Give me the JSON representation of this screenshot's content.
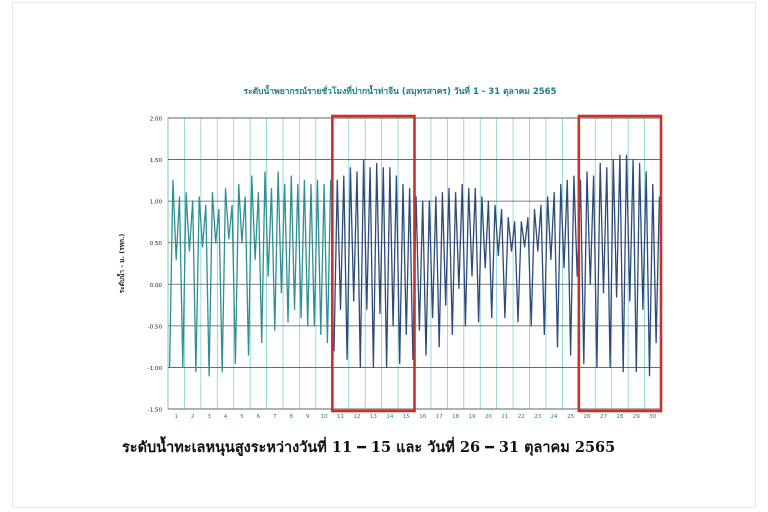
{
  "chart_data": {
    "type": "line",
    "title": "ระดับน้ำพยากรณ์รายชั่วโมงที่ปากน้ำท่าจีน (สมุทรสาคร) วันที่ 1 - 31 ตุลาคม 2565",
    "ylabel": "ระดับน้ำ - ม. (รทก.)",
    "xlabel": "",
    "ylim": [
      -1.5,
      2.0
    ],
    "xlim": [
      0.5,
      30.5
    ],
    "y_ticks": [
      "2.00",
      "1.50",
      "1.00",
      "0.50",
      "0.00",
      "-0.50",
      "-1.00",
      "-1.50"
    ],
    "x_ticks": [
      "1",
      "2",
      "3",
      "4",
      "5",
      "6",
      "7",
      "8",
      "9",
      "10",
      "11",
      "12",
      "13",
      "14",
      "15",
      "16",
      "17",
      "18",
      "19",
      "20",
      "21",
      "22",
      "23",
      "24",
      "25",
      "26",
      "27",
      "28",
      "29",
      "30"
    ],
    "grid": true,
    "highlight_ranges": [
      [
        10.5,
        15.5
      ],
      [
        25.5,
        30.5
      ]
    ],
    "series": [
      {
        "color": "#2f8f94",
        "x": [
          0.6,
          0.8,
          1.0,
          1.2,
          1.4,
          1.6,
          1.8,
          2.0,
          2.2,
          2.4,
          2.6,
          2.8,
          3.0,
          3.2,
          3.4,
          3.6,
          3.8,
          4.0,
          4.2,
          4.4,
          4.6,
          4.8,
          5.0,
          5.2,
          5.4,
          5.6,
          5.8,
          6.0,
          6.2,
          6.4,
          6.6,
          6.8,
          7.0,
          7.2,
          7.4,
          7.6,
          7.8,
          8.0,
          8.2,
          8.4,
          8.6,
          8.8,
          9.0,
          9.2,
          9.4,
          9.6,
          9.8,
          10.0,
          10.2,
          10.4
        ],
        "y": [
          -1.0,
          1.25,
          0.3,
          1.05,
          -1.0,
          1.1,
          0.4,
          1.0,
          -1.05,
          1.05,
          0.45,
          0.95,
          -1.1,
          1.1,
          0.5,
          0.9,
          -1.05,
          1.15,
          0.55,
          0.95,
          -0.95,
          1.2,
          0.5,
          1.05,
          -0.85,
          1.3,
          0.3,
          1.1,
          -0.7,
          1.35,
          0.1,
          1.15,
          -0.55,
          1.35,
          -0.1,
          1.2,
          -0.45,
          1.3,
          -0.3,
          1.2,
          -0.4,
          1.25,
          -0.5,
          1.2,
          -0.5,
          1.25,
          -0.6,
          1.2,
          -0.7,
          1.25
        ]
      },
      {
        "color": "#2d4a7a",
        "x": [
          10.6,
          10.8,
          11.0,
          11.2,
          11.4,
          11.6,
          11.8,
          12.0,
          12.2,
          12.4,
          12.6,
          12.8,
          13.0,
          13.2,
          13.4,
          13.6,
          13.8,
          14.0,
          14.2,
          14.4,
          14.6,
          14.8,
          15.0,
          15.2,
          15.4,
          15.6,
          15.8,
          16.0,
          16.2,
          16.4,
          16.6,
          16.8,
          17.0,
          17.2,
          17.4,
          17.6,
          17.8,
          18.0,
          18.2,
          18.4,
          18.6,
          18.8,
          19.0,
          19.2,
          19.4,
          19.6,
          19.8,
          20.0,
          20.2,
          20.4,
          20.6,
          20.8,
          21.0,
          21.2,
          21.4,
          21.6,
          21.8,
          22.0,
          22.2,
          22.4,
          22.6,
          22.8,
          23.0,
          23.2,
          23.4,
          23.6,
          23.8,
          24.0,
          24.2,
          24.4,
          24.6,
          24.8,
          25.0,
          25.2,
          25.4,
          25.6,
          25.8,
          26.0,
          26.2,
          26.4,
          26.6,
          26.8,
          27.0,
          27.2,
          27.4,
          27.6,
          27.8,
          28.0,
          28.2,
          28.4,
          28.6,
          28.8,
          29.0,
          29.2,
          29.4,
          29.6,
          29.8,
          30.0,
          30.2,
          30.4
        ],
        "y": [
          -0.8,
          1.25,
          -0.3,
          1.3,
          -0.9,
          1.4,
          -0.2,
          1.35,
          -1.0,
          1.5,
          -0.3,
          1.4,
          -1.0,
          1.45,
          -0.35,
          1.4,
          -1.0,
          1.4,
          -0.5,
          1.3,
          -0.95,
          1.2,
          -0.6,
          1.15,
          -0.9,
          1.05,
          -0.55,
          1.0,
          -0.85,
          1.0,
          -0.4,
          1.05,
          -0.75,
          1.1,
          -0.25,
          1.15,
          -0.6,
          1.1,
          -0.05,
          1.2,
          -0.5,
          1.15,
          0.1,
          1.15,
          -0.45,
          1.05,
          0.2,
          1.0,
          -0.4,
          0.95,
          0.35,
          0.9,
          -0.4,
          0.8,
          0.4,
          0.75,
          -0.45,
          0.75,
          0.45,
          0.8,
          -0.5,
          0.9,
          0.4,
          0.95,
          -0.6,
          1.05,
          0.3,
          1.1,
          -0.75,
          1.2,
          0.2,
          1.25,
          -0.85,
          1.3,
          0.1,
          1.25,
          -0.95,
          1.35,
          0.0,
          1.3,
          -1.0,
          1.45,
          -0.1,
          1.4,
          -1.0,
          1.5,
          -0.15,
          1.55,
          -1.05,
          1.55,
          -0.2,
          1.5,
          -1.05,
          1.45,
          -0.3,
          1.35,
          -1.1,
          1.2,
          -0.7,
          1.05
        ]
      }
    ]
  },
  "caption": "ระดับน้ำทะเลหนุนสูงระหว่างวันที่ 11 ━ 15 และ วันที่ 26 ━ 31 ตุลาคม 2565"
}
